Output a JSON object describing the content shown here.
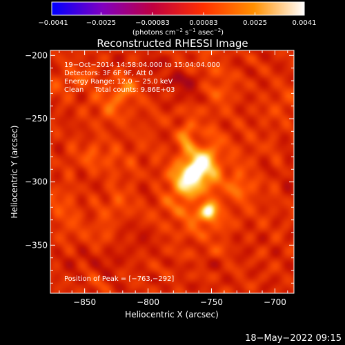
{
  "chart_data": {
    "type": "heatmap",
    "title": "Reconstructed RHESSI Image",
    "xlabel": "Heliocentric X (arcsec)",
    "ylabel": "Heliocentric Y (arcsec)",
    "xlim": [
      -877,
      -685
    ],
    "ylim": [
      -388,
      -196
    ],
    "x_ticks": [
      -850,
      -800,
      -750,
      -700
    ],
    "x_tick_labels": [
      "−850",
      "−800",
      "−750",
      "−700"
    ],
    "y_ticks": [
      -200,
      -250,
      -300,
      -350
    ],
    "y_tick_labels": [
      "−200",
      "−250",
      "−300",
      "−350"
    ],
    "colorbar": {
      "range": [
        -0.0041,
        0.0041
      ],
      "ticks": [
        -0.0041,
        -0.0025,
        -0.00083,
        0.00083,
        0.0025,
        0.0041
      ],
      "tick_labels": [
        "−0.0041",
        "−0.0025",
        "−0.00083",
        "0.00083",
        "0.0025",
        "0.0041"
      ],
      "unit_main": "(photons cm",
      "unit_sup1": "−2",
      "unit_mid": " s",
      "unit_sup2": "−1",
      "unit_end": " asec",
      "unit_sup3": "−2",
      "unit_close": ")",
      "colormap": "red-temperature",
      "colors": [
        "#0000ff",
        "#8000c0",
        "#c00040",
        "#ff3000",
        "#ff9000",
        "#ffffff"
      ]
    },
    "annotations": [
      "19−Oct−2014 14:58:04.000 to 15:04:04.000",
      "Detectors: 3F 6F 9F, Att 0",
      "Energy Range: 12.0 − 25.0 keV",
      "Clean     Total counts: 9.86E+03"
    ],
    "peak_label": "Position of Peak = [−763,−292]",
    "peak": [
      -763,
      -292
    ],
    "sources": [
      {
        "x": -763,
        "y": -292,
        "sx": 7,
        "sy": 14,
        "angle_deg": 32,
        "amp": 1.0
      },
      {
        "x": -752,
        "y": -323,
        "sx": 4,
        "sy": 5,
        "angle_deg": 0,
        "amp": 0.55
      },
      {
        "x": -770,
        "y": -268,
        "sx": 5,
        "sy": 6,
        "angle_deg": 0,
        "amp": 0.5
      }
    ],
    "grid": false
  },
  "timestamp": "18−May−2022 09:15"
}
